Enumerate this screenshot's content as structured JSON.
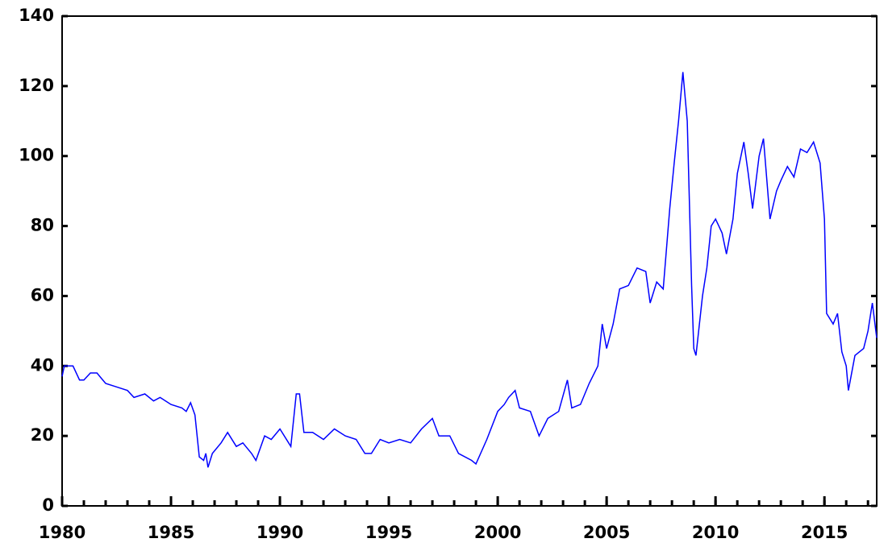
{
  "chart_data": {
    "type": "line",
    "x": [
      1980.0,
      1980.1,
      1980.5,
      1980.8,
      1981.0,
      1981.3,
      1981.6,
      1982.0,
      1982.5,
      1983.0,
      1983.3,
      1983.8,
      1984.2,
      1984.5,
      1985.0,
      1985.5,
      1985.7,
      1985.9,
      1986.1,
      1986.3,
      1986.5,
      1986.6,
      1986.7,
      1986.9,
      1987.3,
      1987.6,
      1988.0,
      1988.3,
      1988.7,
      1988.9,
      1989.3,
      1989.6,
      1990.0,
      1990.5,
      1990.75,
      1990.9,
      1991.1,
      1991.5,
      1992.0,
      1992.5,
      1993.0,
      1993.5,
      1993.9,
      1994.2,
      1994.6,
      1995.0,
      1995.5,
      1996.0,
      1996.5,
      1997.0,
      1997.3,
      1997.8,
      1998.2,
      1998.8,
      1999.0,
      1999.5,
      2000.0,
      2000.3,
      2000.5,
      2000.8,
      2001.0,
      2001.5,
      2001.9,
      2002.3,
      2002.8,
      2003.2,
      2003.4,
      2003.8,
      2004.2,
      2004.6,
      2004.8,
      2005.0,
      2005.3,
      2005.6,
      2006.0,
      2006.4,
      2006.8,
      2007.0,
      2007.3,
      2007.6,
      2007.9,
      2008.1,
      2008.3,
      2008.5,
      2008.7,
      2008.9,
      2009.0,
      2009.1,
      2009.4,
      2009.6,
      2009.8,
      2010.0,
      2010.3,
      2010.5,
      2010.8,
      2011.0,
      2011.3,
      2011.5,
      2011.7,
      2012.0,
      2012.2,
      2012.5,
      2012.8,
      2013.0,
      2013.3,
      2013.6,
      2013.9,
      2014.2,
      2014.5,
      2014.8,
      2015.0,
      2015.1,
      2015.4,
      2015.6,
      2015.8,
      2016.0,
      2016.1,
      2016.4,
      2016.8,
      2017.0,
      2017.2,
      2017.4
    ],
    "series": [
      {
        "color": "#0000ff",
        "values": [
          37,
          40,
          40,
          36,
          36,
          38,
          38,
          35,
          34,
          33,
          31,
          32,
          30,
          31,
          29,
          28,
          27,
          29.5,
          26,
          14,
          13,
          15,
          11,
          15,
          18,
          21,
          17,
          18,
          15,
          13,
          20,
          19,
          22,
          17,
          32,
          32,
          21,
          21,
          19,
          22,
          20,
          19,
          15,
          15,
          19,
          18,
          19,
          18,
          22,
          25,
          20,
          20,
          15,
          13,
          12,
          19,
          27,
          29,
          31,
          33,
          28,
          27,
          20,
          25,
          27,
          36,
          28,
          29,
          35,
          40,
          52,
          45,
          52,
          62,
          63,
          68,
          67,
          58,
          64,
          62,
          85,
          98,
          110,
          124,
          110,
          63,
          45,
          43,
          60,
          68,
          80,
          82,
          78,
          72,
          82,
          95,
          104,
          95,
          85,
          100,
          105,
          82,
          90,
          93,
          97,
          94,
          102,
          101,
          104,
          98,
          82,
          55,
          52,
          55,
          44,
          40,
          33,
          43,
          45,
          50,
          58,
          48
        ]
      }
    ],
    "xlim": [
      1980,
      2017.4
    ],
    "xticks": [
      1980,
      1985,
      1990,
      1995,
      2000,
      2005,
      2010,
      2015
    ],
    "xminorticks": [
      1980,
      1981,
      1982,
      1983,
      1984,
      1985,
      1986,
      1987,
      1988,
      1989,
      1990,
      1991,
      1992,
      1993,
      1994,
      1995,
      1996,
      1997,
      1998,
      1999,
      2000,
      2001,
      2002,
      2003,
      2004,
      2005,
      2006,
      2007,
      2008,
      2009,
      2010,
      2011,
      2012,
      2013,
      2014,
      2015,
      2016,
      2017
    ],
    "ylim": [
      0,
      140
    ],
    "yticks": [
      0,
      20,
      40,
      60,
      80,
      100,
      120,
      140
    ]
  }
}
